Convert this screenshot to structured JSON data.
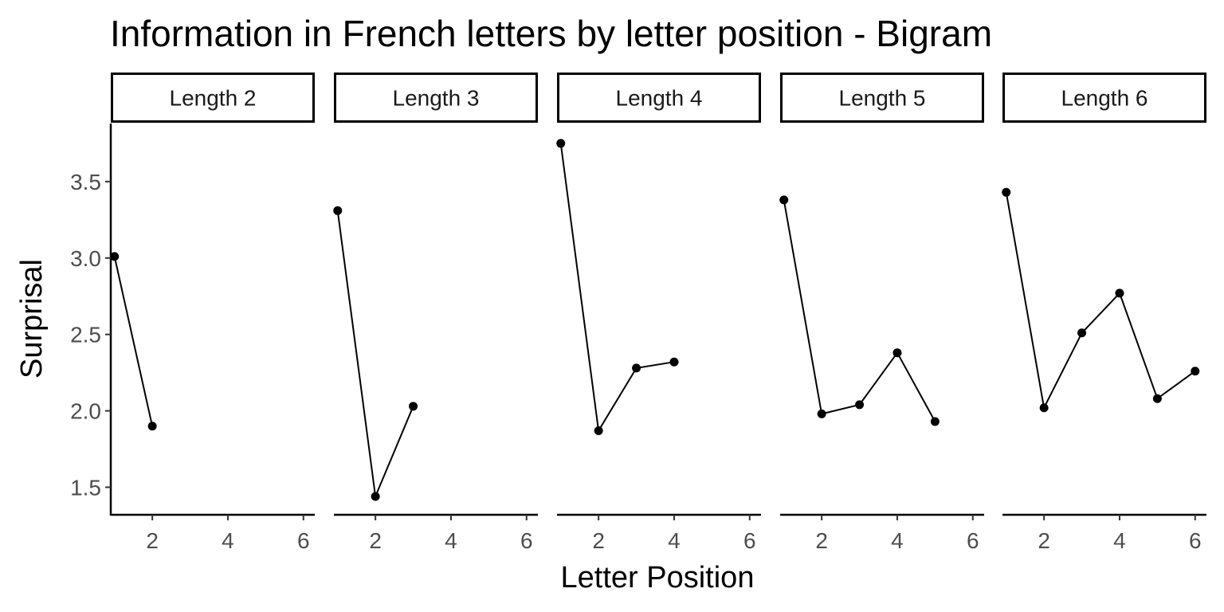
{
  "chart_data": {
    "type": "line",
    "title": "Information in French letters by letter position - Bigram",
    "xlabel": "Letter Position",
    "ylabel": "Surprisal",
    "xlim": [
      0.9,
      6.3
    ],
    "ylim": [
      1.32,
      3.88
    ],
    "x_ticks": [
      2,
      4,
      6
    ],
    "y_ticks": [
      1.5,
      2.0,
      2.5,
      3.0,
      3.5
    ],
    "y_tick_labels": [
      "1.5",
      "2.0",
      "2.5",
      "3.0",
      "3.5"
    ],
    "grid": false,
    "legend": "none",
    "line_color": "#000000",
    "facets": [
      {
        "label": "Length 2",
        "x": [
          1,
          2
        ],
        "y": [
          3.01,
          1.9
        ]
      },
      {
        "label": "Length 3",
        "x": [
          1,
          2,
          3
        ],
        "y": [
          3.31,
          1.44,
          2.03
        ]
      },
      {
        "label": "Length 4",
        "x": [
          1,
          2,
          3,
          4
        ],
        "y": [
          3.75,
          1.87,
          2.28,
          2.32
        ]
      },
      {
        "label": "Length 5",
        "x": [
          1,
          2,
          3,
          4,
          5
        ],
        "y": [
          3.38,
          1.98,
          2.04,
          2.38,
          1.93
        ]
      },
      {
        "label": "Length 6",
        "x": [
          1,
          2,
          3,
          4,
          5,
          6
        ],
        "y": [
          3.43,
          2.02,
          2.51,
          2.77,
          2.08,
          2.26
        ]
      }
    ]
  }
}
